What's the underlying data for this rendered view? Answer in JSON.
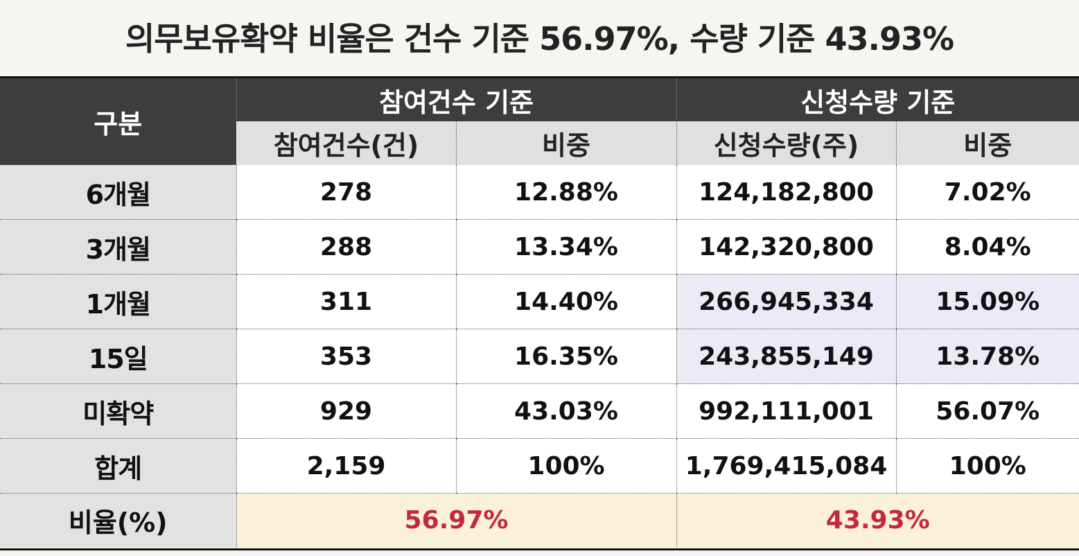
{
  "title": "의무보유확약 비율은 건수 기준 56.97%, 수량 기준 43.93%",
  "header": {
    "category": "구분",
    "group1": "참여건수 기준",
    "group2": "신청수량 기준",
    "col_count": "참여건수(건)",
    "col_count_share": "비중",
    "col_qty": "신청수량(주)",
    "col_qty_share": "비중"
  },
  "rows": [
    {
      "label": "6개월",
      "count": "278",
      "count_share": "12.88%",
      "qty": "124,182,800",
      "qty_share": "7.02%"
    },
    {
      "label": "3개월",
      "count": "288",
      "count_share": "13.34%",
      "qty": "142,320,800",
      "qty_share": "8.04%"
    },
    {
      "label": "1개월",
      "count": "311",
      "count_share": "14.40%",
      "qty": "266,945,334",
      "qty_share": "15.09%"
    },
    {
      "label": "15일",
      "count": "353",
      "count_share": "16.35%",
      "qty": "243,855,149",
      "qty_share": "13.78%"
    },
    {
      "label": "미확약",
      "count": "929",
      "count_share": "43.03%",
      "qty": "992,111,001",
      "qty_share": "56.07%"
    },
    {
      "label": "합계",
      "count": "2,159",
      "count_share": "100%",
      "qty": "1,769,415,084",
      "qty_share": "100%"
    }
  ],
  "ratio": {
    "label": "비율(%)",
    "count_ratio": "56.97%",
    "qty_ratio": "43.93%"
  },
  "colors": {
    "header_dark": "#3d3d3d",
    "header_light": "#e0e0e0",
    "highlight_rows": "#ebeaf5",
    "ratio_bg": "#fbf1d6",
    "ratio_text": "#c4283e"
  }
}
